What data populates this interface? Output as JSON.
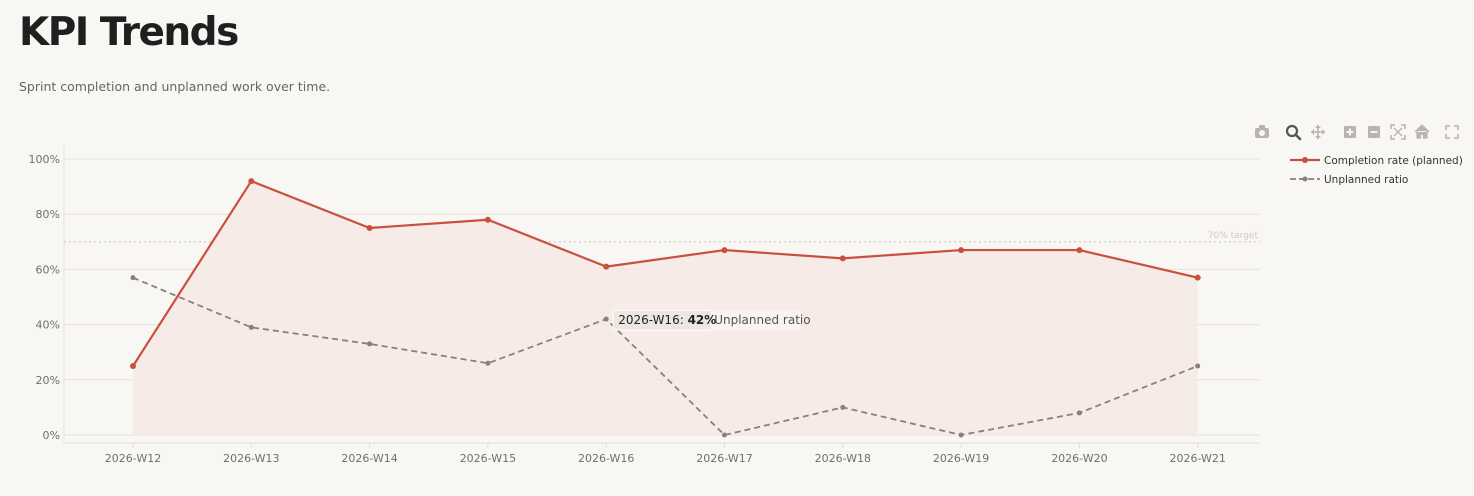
{
  "header": {
    "title": "KPI Trends",
    "subtitle": "Sprint completion and unplanned work over time."
  },
  "modebar": {
    "buttons": [
      {
        "icon": "camera-icon",
        "name": "download-plot"
      },
      {
        "icon": "zoom-icon",
        "name": "zoom",
        "active": true
      },
      {
        "icon": "pan-icon",
        "name": "pan"
      },
      {
        "icon": "zoom-in-icon",
        "name": "zoom-in"
      },
      {
        "icon": "zoom-out-icon",
        "name": "zoom-out"
      },
      {
        "icon": "autoscale-icon",
        "name": "autoscale"
      },
      {
        "icon": "home-icon",
        "name": "reset-axes"
      },
      {
        "icon": "fullscreen-icon",
        "name": "fullscreen"
      }
    ]
  },
  "colors": {
    "completion": "#c9503e",
    "unplanned": "#8a7f7a",
    "fill": "#f5e9e4",
    "grid": "#e4e0db",
    "target": "#d6d1cb"
  },
  "chart_data": {
    "type": "line",
    "categories": [
      "2026-W12",
      "2026-W13",
      "2026-W14",
      "2026-W15",
      "2026-W16",
      "2026-W17",
      "2026-W18",
      "2026-W19",
      "2026-W20",
      "2026-W21"
    ],
    "ylim": [
      0,
      1
    ],
    "yticks": [
      "0%",
      "20%",
      "40%",
      "60%",
      "80%",
      "100%"
    ],
    "grid": true,
    "legend_position": "top-right",
    "series": [
      {
        "name": "Completion rate (planned)",
        "style": "solid",
        "fill": "tozeroy",
        "values": [
          0.25,
          0.92,
          0.75,
          0.78,
          0.61,
          0.67,
          0.64,
          0.67,
          0.67,
          0.57
        ]
      },
      {
        "name": "Unplanned ratio",
        "style": "dashed",
        "values": [
          0.57,
          0.39,
          0.33,
          0.26,
          0.42,
          0.0,
          0.1,
          0.0,
          0.08,
          0.25
        ]
      }
    ],
    "target_line": {
      "value": 0.7,
      "label": "70% target"
    },
    "hover": {
      "category": "2026-W16",
      "value": "42%",
      "series": "Unplanned ratio",
      "category_label": "2026-W16:"
    }
  }
}
